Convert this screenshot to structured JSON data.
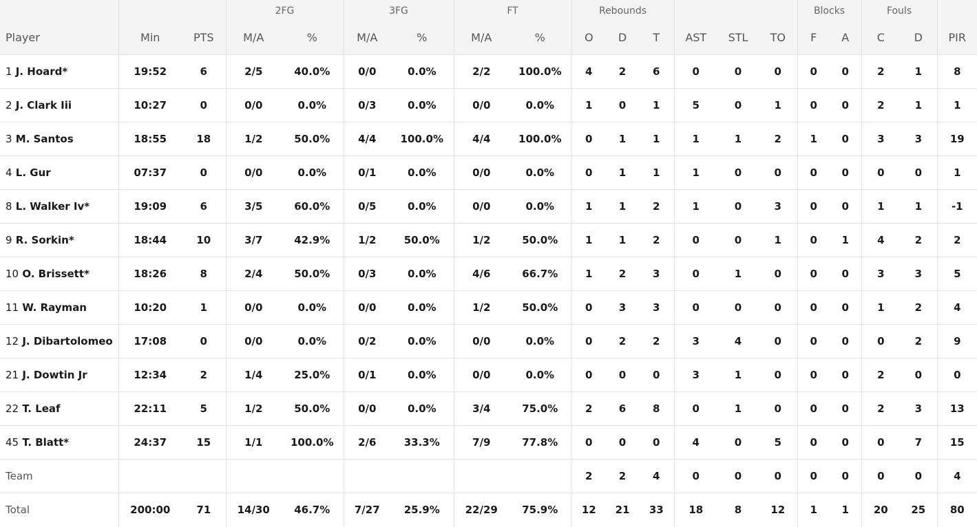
{
  "header": {
    "groups": {
      "fg2": "2FG",
      "fg3": "3FG",
      "ft": "FT",
      "rebounds": "Rebounds",
      "blocks": "Blocks",
      "fouls": "Fouls"
    },
    "columns": {
      "player": "Player",
      "min": "Min",
      "pts": "PTS",
      "fg2_ma": "M/A",
      "fg2_pct": "%",
      "fg3_ma": "M/A",
      "fg3_pct": "%",
      "ft_ma": "M/A",
      "ft_pct": "%",
      "reb_o": "O",
      "reb_d": "D",
      "reb_t": "T",
      "ast": "AST",
      "stl": "STL",
      "to": "TO",
      "blk_f": "F",
      "blk_a": "A",
      "foul_c": "C",
      "foul_d": "D",
      "pir": "PIR"
    }
  },
  "rows": [
    {
      "num": "1",
      "name": "J. Hoard*",
      "min": "19:52",
      "pts": "6",
      "fg2_ma": "2/5",
      "fg2_pct": "40.0%",
      "fg3_ma": "0/0",
      "fg3_pct": "0.0%",
      "ft_ma": "2/2",
      "ft_pct": "100.0%",
      "reb_o": "4",
      "reb_d": "2",
      "reb_t": "6",
      "ast": "0",
      "stl": "0",
      "to": "0",
      "blk_f": "0",
      "blk_a": "0",
      "foul_c": "2",
      "foul_d": "1",
      "pir": "8"
    },
    {
      "num": "2",
      "name": "J. Clark Iii",
      "min": "10:27",
      "pts": "0",
      "fg2_ma": "0/0",
      "fg2_pct": "0.0%",
      "fg3_ma": "0/3",
      "fg3_pct": "0.0%",
      "ft_ma": "0/0",
      "ft_pct": "0.0%",
      "reb_o": "1",
      "reb_d": "0",
      "reb_t": "1",
      "ast": "5",
      "stl": "0",
      "to": "1",
      "blk_f": "0",
      "blk_a": "0",
      "foul_c": "2",
      "foul_d": "1",
      "pir": "1"
    },
    {
      "num": "3",
      "name": "M. Santos",
      "min": "18:55",
      "pts": "18",
      "fg2_ma": "1/2",
      "fg2_pct": "50.0%",
      "fg3_ma": "4/4",
      "fg3_pct": "100.0%",
      "ft_ma": "4/4",
      "ft_pct": "100.0%",
      "reb_o": "0",
      "reb_d": "1",
      "reb_t": "1",
      "ast": "1",
      "stl": "1",
      "to": "2",
      "blk_f": "1",
      "blk_a": "0",
      "foul_c": "3",
      "foul_d": "3",
      "pir": "19"
    },
    {
      "num": "4",
      "name": "L. Gur",
      "min": "07:37",
      "pts": "0",
      "fg2_ma": "0/0",
      "fg2_pct": "0.0%",
      "fg3_ma": "0/1",
      "fg3_pct": "0.0%",
      "ft_ma": "0/0",
      "ft_pct": "0.0%",
      "reb_o": "0",
      "reb_d": "1",
      "reb_t": "1",
      "ast": "1",
      "stl": "0",
      "to": "0",
      "blk_f": "0",
      "blk_a": "0",
      "foul_c": "0",
      "foul_d": "0",
      "pir": "1"
    },
    {
      "num": "8",
      "name": "L. Walker Iv*",
      "min": "19:09",
      "pts": "6",
      "fg2_ma": "3/5",
      "fg2_pct": "60.0%",
      "fg3_ma": "0/5",
      "fg3_pct": "0.0%",
      "ft_ma": "0/0",
      "ft_pct": "0.0%",
      "reb_o": "1",
      "reb_d": "1",
      "reb_t": "2",
      "ast": "1",
      "stl": "0",
      "to": "3",
      "blk_f": "0",
      "blk_a": "0",
      "foul_c": "1",
      "foul_d": "1",
      "pir": "-1"
    },
    {
      "num": "9",
      "name": "R. Sorkin*",
      "min": "18:44",
      "pts": "10",
      "fg2_ma": "3/7",
      "fg2_pct": "42.9%",
      "fg3_ma": "1/2",
      "fg3_pct": "50.0%",
      "ft_ma": "1/2",
      "ft_pct": "50.0%",
      "reb_o": "1",
      "reb_d": "1",
      "reb_t": "2",
      "ast": "0",
      "stl": "0",
      "to": "1",
      "blk_f": "0",
      "blk_a": "1",
      "foul_c": "4",
      "foul_d": "2",
      "pir": "2"
    },
    {
      "num": "10",
      "name": "O. Brissett*",
      "min": "18:26",
      "pts": "8",
      "fg2_ma": "2/4",
      "fg2_pct": "50.0%",
      "fg3_ma": "0/3",
      "fg3_pct": "0.0%",
      "ft_ma": "4/6",
      "ft_pct": "66.7%",
      "reb_o": "1",
      "reb_d": "2",
      "reb_t": "3",
      "ast": "0",
      "stl": "1",
      "to": "0",
      "blk_f": "0",
      "blk_a": "0",
      "foul_c": "3",
      "foul_d": "3",
      "pir": "5"
    },
    {
      "num": "11",
      "name": "W. Rayman",
      "min": "10:20",
      "pts": "1",
      "fg2_ma": "0/0",
      "fg2_pct": "0.0%",
      "fg3_ma": "0/0",
      "fg3_pct": "0.0%",
      "ft_ma": "1/2",
      "ft_pct": "50.0%",
      "reb_o": "0",
      "reb_d": "3",
      "reb_t": "3",
      "ast": "0",
      "stl": "0",
      "to": "0",
      "blk_f": "0",
      "blk_a": "0",
      "foul_c": "1",
      "foul_d": "2",
      "pir": "4"
    },
    {
      "num": "12",
      "name": "J. Dibartolomeo",
      "min": "17:08",
      "pts": "0",
      "fg2_ma": "0/0",
      "fg2_pct": "0.0%",
      "fg3_ma": "0/2",
      "fg3_pct": "0.0%",
      "ft_ma": "0/0",
      "ft_pct": "0.0%",
      "reb_o": "0",
      "reb_d": "2",
      "reb_t": "2",
      "ast": "3",
      "stl": "4",
      "to": "0",
      "blk_f": "0",
      "blk_a": "0",
      "foul_c": "0",
      "foul_d": "2",
      "pir": "9"
    },
    {
      "num": "21",
      "name": "J. Dowtin Jr",
      "min": "12:34",
      "pts": "2",
      "fg2_ma": "1/4",
      "fg2_pct": "25.0%",
      "fg3_ma": "0/1",
      "fg3_pct": "0.0%",
      "ft_ma": "0/0",
      "ft_pct": "0.0%",
      "reb_o": "0",
      "reb_d": "0",
      "reb_t": "0",
      "ast": "3",
      "stl": "1",
      "to": "0",
      "blk_f": "0",
      "blk_a": "0",
      "foul_c": "2",
      "foul_d": "0",
      "pir": "0"
    },
    {
      "num": "22",
      "name": "T. Leaf",
      "min": "22:11",
      "pts": "5",
      "fg2_ma": "1/2",
      "fg2_pct": "50.0%",
      "fg3_ma": "0/0",
      "fg3_pct": "0.0%",
      "ft_ma": "3/4",
      "ft_pct": "75.0%",
      "reb_o": "2",
      "reb_d": "6",
      "reb_t": "8",
      "ast": "0",
      "stl": "1",
      "to": "0",
      "blk_f": "0",
      "blk_a": "0",
      "foul_c": "2",
      "foul_d": "3",
      "pir": "13"
    },
    {
      "num": "45",
      "name": "T. Blatt*",
      "min": "24:37",
      "pts": "15",
      "fg2_ma": "1/1",
      "fg2_pct": "100.0%",
      "fg3_ma": "2/6",
      "fg3_pct": "33.3%",
      "ft_ma": "7/9",
      "ft_pct": "77.8%",
      "reb_o": "0",
      "reb_d": "0",
      "reb_t": "0",
      "ast": "4",
      "stl": "0",
      "to": "5",
      "blk_f": "0",
      "blk_a": "0",
      "foul_c": "0",
      "foul_d": "7",
      "pir": "15"
    }
  ],
  "team": {
    "label": "Team",
    "reb_o": "2",
    "reb_d": "2",
    "reb_t": "4",
    "ast": "0",
    "stl": "0",
    "to": "0",
    "blk_f": "0",
    "blk_a": "0",
    "foul_c": "0",
    "foul_d": "0",
    "pir": "4"
  },
  "total": {
    "label": "Total",
    "min": "200:00",
    "pts": "71",
    "fg2_ma": "14/30",
    "fg2_pct": "46.7%",
    "fg3_ma": "7/27",
    "fg3_pct": "25.9%",
    "ft_ma": "22/29",
    "ft_pct": "75.9%",
    "reb_o": "12",
    "reb_d": "21",
    "reb_t": "33",
    "ast": "18",
    "stl": "8",
    "to": "12",
    "blk_f": "1",
    "blk_a": "1",
    "foul_c": "20",
    "foul_d": "25",
    "pir": "80"
  }
}
